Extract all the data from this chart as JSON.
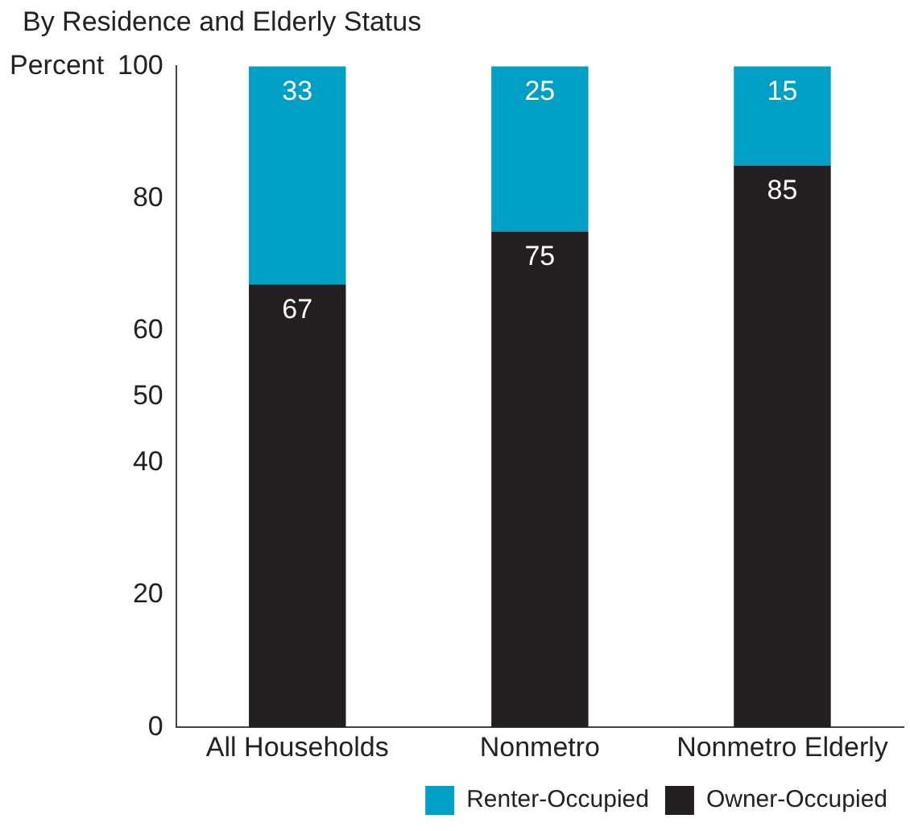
{
  "chart_data": {
    "type": "bar",
    "title": "By Residence and Elderly Status",
    "ylabel": "Percent",
    "categories": [
      "All Households",
      "Nonmetro",
      "Nonmetro Elderly"
    ],
    "series": [
      {
        "name": "Owner-Occupied",
        "color": "#231f20",
        "values": [
          67,
          75,
          85
        ]
      },
      {
        "name": "Renter-Occupied",
        "color": "#00a0c6",
        "values": [
          33,
          25,
          15
        ]
      }
    ],
    "stacked": true,
    "ylim": [
      0,
      100
    ],
    "yticks": [
      0,
      20,
      40,
      50,
      60,
      80,
      100
    ],
    "grid": false,
    "legend": "bottom right",
    "data_labels": true
  }
}
